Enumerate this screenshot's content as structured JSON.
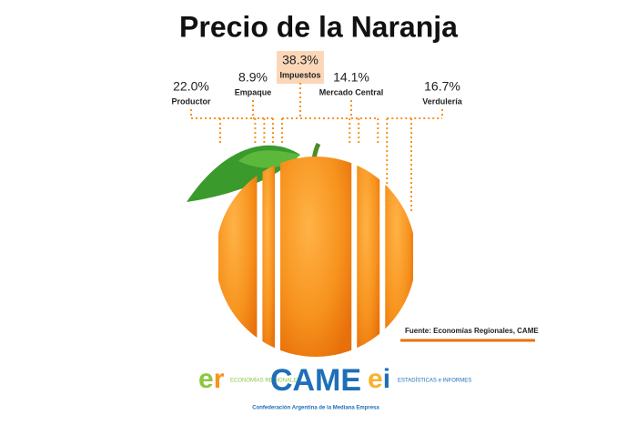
{
  "chart_data": {
    "type": "slices",
    "title": "Precio de la Naranja",
    "categories": [
      "Productor",
      "Empaque",
      "Impuestos",
      "Mercado Central",
      "Verdulería"
    ],
    "values": [
      22.0,
      8.9,
      38.3,
      14.1,
      16.7
    ],
    "value_labels": [
      "22.0%",
      "8.9%",
      "38.3%",
      "14.1%",
      "16.7%"
    ],
    "highlight": 2,
    "color": "#f7931e",
    "source": "Fuente: Economías Regionales, CAME"
  },
  "footer": {
    "logo_left": "ECONOMÍAS REGIONALES",
    "logo_center": "CAME",
    "logo_center_sub": "Confederación Argentina de la Mediana Empresa",
    "logo_right": "ESTADÍSTICAS e INFORMES"
  }
}
